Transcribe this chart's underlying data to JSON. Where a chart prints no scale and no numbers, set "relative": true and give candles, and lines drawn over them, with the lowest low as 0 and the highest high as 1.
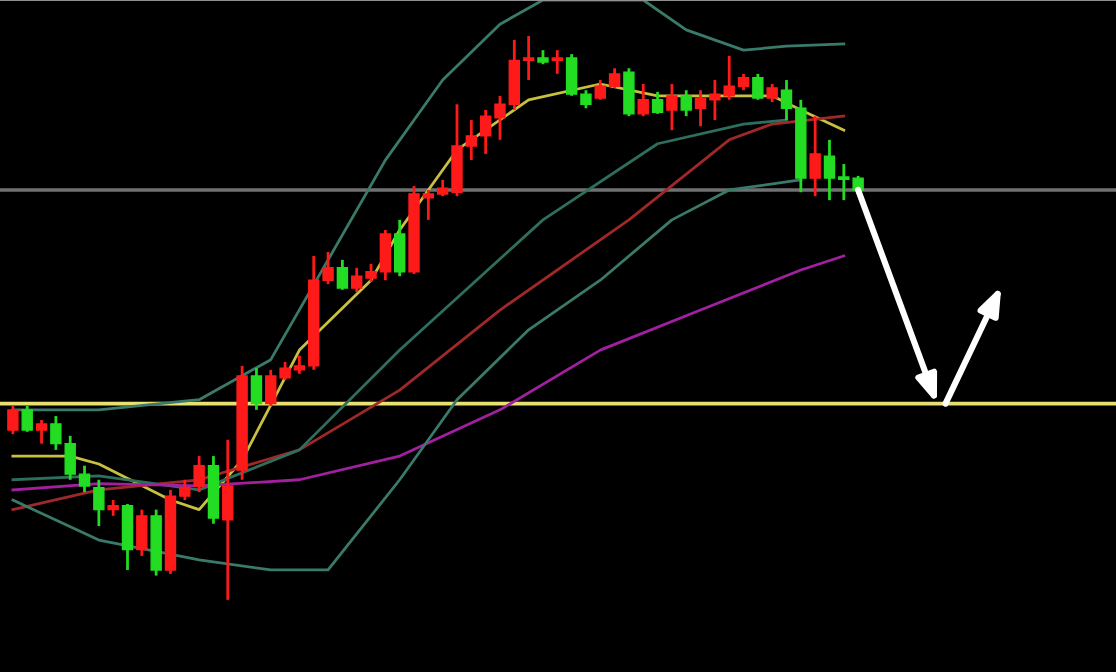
{
  "chart_data": {
    "type": "candlestick",
    "relative": true,
    "categories": [
      null,
      null,
      null,
      null,
      null,
      null,
      null,
      null,
      null,
      null,
      null,
      null,
      null,
      null,
      null,
      null,
      null,
      null,
      null,
      null,
      null,
      null,
      null,
      null,
      null,
      null,
      null,
      null,
      null,
      null,
      null,
      null,
      null,
      null,
      null,
      null,
      null,
      null,
      null,
      null,
      null,
      null,
      null,
      null,
      null,
      null,
      null,
      null,
      null,
      null,
      null,
      null,
      null,
      null,
      null,
      null,
      null,
      null,
      null,
      null
    ],
    "ohlc": [
      [
        0.301,
        0.344,
        0.294,
        0.337
      ],
      [
        0.337,
        0.344,
        0.298,
        0.301
      ],
      [
        0.301,
        0.319,
        0.277,
        0.312
      ],
      [
        0.312,
        0.326,
        0.266,
        0.277
      ],
      [
        0.277,
        0.291,
        0.213,
        0.223
      ],
      [
        0.223,
        0.238,
        0.191,
        0.202
      ],
      [
        0.199,
        0.213,
        0.131,
        0.16
      ],
      [
        0.16,
        0.177,
        0.149,
        0.167
      ],
      [
        0.167,
        0.17,
        0.053,
        0.089
      ],
      [
        0.089,
        0.16,
        0.078,
        0.149
      ],
      [
        0.149,
        0.16,
        0.043,
        0.053
      ],
      [
        0.053,
        0.195,
        0.046,
        0.184
      ],
      [
        0.184,
        0.213,
        0.177,
        0.199
      ],
      [
        0.202,
        0.255,
        0.191,
        0.238
      ],
      [
        0.238,
        0.255,
        0.135,
        0.145
      ],
      [
        0.142,
        0.284,
        0.0,
        0.202
      ],
      [
        0.23,
        0.415,
        0.213,
        0.397
      ],
      [
        0.397,
        0.411,
        0.337,
        0.348
      ],
      [
        0.348,
        0.408,
        0.344,
        0.397
      ],
      [
        0.394,
        0.422,
        0.39,
        0.411
      ],
      [
        0.408,
        0.433,
        0.401,
        0.415
      ],
      [
        0.415,
        0.61,
        0.408,
        0.567
      ],
      [
        0.567,
        0.617,
        0.56,
        0.589
      ],
      [
        0.589,
        0.603,
        0.55,
        0.553
      ],
      [
        0.553,
        0.589,
        0.546,
        0.574
      ],
      [
        0.571,
        0.596,
        0.564,
        0.582
      ],
      [
        0.582,
        0.656,
        0.567,
        0.649
      ],
      [
        0.649,
        0.674,
        0.574,
        0.582
      ],
      [
        0.582,
        0.734,
        0.578,
        0.72
      ],
      [
        0.713,
        0.727,
        0.674,
        0.72
      ],
      [
        0.72,
        0.745,
        0.716,
        0.73
      ],
      [
        0.723,
        0.879,
        0.716,
        0.805
      ],
      [
        0.805,
        0.851,
        0.78,
        0.823
      ],
      [
        0.823,
        0.869,
        0.791,
        0.858
      ],
      [
        0.855,
        0.894,
        0.816,
        0.879
      ],
      [
        0.879,
        0.993,
        0.869,
        0.957
      ],
      [
        0.957,
        1.0,
        0.922,
        0.961
      ],
      [
        0.961,
        0.975,
        0.95,
        0.954
      ],
      [
        0.957,
        0.975,
        0.933,
        0.961
      ],
      [
        0.961,
        0.968,
        0.894,
        0.897
      ],
      [
        0.897,
        0.904,
        0.872,
        0.879
      ],
      [
        0.89,
        0.922,
        0.887,
        0.911
      ],
      [
        0.911,
        0.943,
        0.908,
        0.933
      ],
      [
        0.936,
        0.943,
        0.858,
        0.862
      ],
      [
        0.862,
        0.915,
        0.858,
        0.887
      ],
      [
        0.887,
        0.901,
        0.862,
        0.865
      ],
      [
        0.869,
        0.915,
        0.833,
        0.894
      ],
      [
        0.894,
        0.904,
        0.858,
        0.869
      ],
      [
        0.872,
        0.904,
        0.84,
        0.89
      ],
      [
        0.887,
        0.922,
        0.851,
        0.897
      ],
      [
        0.894,
        0.965,
        0.887,
        0.911
      ],
      [
        0.911,
        0.933,
        0.904,
        0.926
      ],
      [
        0.926,
        0.933,
        0.887,
        0.89
      ],
      [
        0.89,
        0.915,
        0.883,
        0.908
      ],
      [
        0.904,
        0.922,
        0.851,
        0.872
      ],
      [
        0.872,
        0.887,
        0.723,
        0.748
      ],
      [
        0.748,
        0.858,
        0.716,
        0.791
      ],
      [
        0.787,
        0.816,
        0.709,
        0.748
      ],
      [
        0.748,
        0.773,
        0.709,
        0.746
      ],
      [
        0.748,
        0.752,
        0.727,
        0.727
      ]
    ],
    "series": [
      {
        "type": "line",
        "color": "#c8c040",
        "values": [
          0.255,
          null,
          null,
          null,
          0.255,
          null,
          0.241,
          null,
          null,
          null,
          null,
          0.177,
          null,
          0.16,
          null,
          null,
          0.248,
          null,
          null,
          null,
          0.443,
          null,
          null,
          null,
          null,
          0.567,
          null,
          0.656,
          null,
          null,
          null,
          0.798,
          null,
          null,
          null,
          null,
          0.887,
          null,
          null,
          null,
          null,
          0.915,
          null,
          null,
          null,
          0.894,
          null,
          null,
          null,
          null,
          0.894,
          null,
          null,
          0.894,
          null,
          0.869,
          null,
          null,
          0.833,
          null
        ]
      },
      {
        "type": "line",
        "color": "#a02828",
        "values": [
          0.16,
          null,
          null,
          null,
          null,
          null,
          0.195,
          null,
          null,
          null,
          null,
          null,
          null,
          0.213,
          null,
          null,
          null,
          null,
          null,
          null,
          0.266,
          null,
          null,
          null,
          null,
          null,
          null,
          0.372,
          null,
          null,
          null,
          null,
          null,
          null,
          0.514,
          null,
          null,
          null,
          null,
          null,
          null,
          null,
          null,
          0.674,
          null,
          null,
          null,
          null,
          null,
          null,
          0.816,
          null,
          null,
          0.844,
          null,
          null,
          null,
          null,
          0.858,
          null
        ]
      },
      {
        "type": "line",
        "color": "#2e6e5e",
        "values": [
          0.213,
          null,
          null,
          null,
          null,
          null,
          0.22,
          null,
          null,
          null,
          null,
          null,
          null,
          0.195,
          null,
          null,
          null,
          null,
          null,
          null,
          0.266,
          null,
          null,
          null,
          null,
          null,
          null,
          0.443,
          null,
          null,
          null,
          null,
          null,
          null,
          null,
          null,
          null,
          0.674,
          null,
          null,
          null,
          null,
          null,
          null,
          null,
          0.809,
          null,
          null,
          null,
          null,
          null,
          0.844,
          null,
          null,
          0.851,
          null,
          null,
          null,
          null,
          null
        ]
      },
      {
        "type": "line",
        "color": "#a020a0",
        "values": [
          0.195,
          null,
          null,
          null,
          null,
          null,
          0.206,
          null,
          null,
          null,
          null,
          null,
          null,
          0.202,
          null,
          null,
          null,
          null,
          null,
          null,
          0.213,
          null,
          null,
          null,
          null,
          null,
          null,
          0.255,
          null,
          null,
          null,
          null,
          null,
          null,
          0.337,
          null,
          null,
          null,
          null,
          null,
          null,
          0.443,
          null,
          null,
          null,
          null,
          null,
          null,
          0.514,
          null,
          null,
          null,
          null,
          null,
          null,
          0.585,
          null,
          null,
          0.61,
          null
        ]
      },
      {
        "type": "line",
        "color": "#3a7a6a",
        "values": [
          0.337,
          null,
          null,
          null,
          null,
          null,
          0.337,
          null,
          null,
          null,
          null,
          null,
          null,
          0.355,
          null,
          null,
          null,
          null,
          0.426,
          null,
          null,
          null,
          0.603,
          null,
          null,
          null,
          0.78,
          null,
          null,
          null,
          0.922,
          null,
          null,
          null,
          1.021,
          null,
          null,
          1.064,
          null,
          null,
          null,
          null,
          null,
          null,
          1.064,
          null,
          null,
          1.011,
          null,
          null,
          null,
          0.975,
          null,
          null,
          0.982,
          null,
          null,
          null,
          0.986,
          null
        ]
      },
      {
        "type": "line",
        "color": "#3a7a6a",
        "values": [
          0.177,
          null,
          null,
          null,
          null,
          null,
          0.106,
          null,
          null,
          null,
          null,
          null,
          null,
          0.071,
          null,
          null,
          null,
          null,
          0.053,
          null,
          null,
          null,
          0.053,
          null,
          null,
          null,
          null,
          0.213,
          null,
          null,
          null,
          0.355,
          null,
          null,
          null,
          null,
          0.479,
          null,
          null,
          null,
          null,
          0.567,
          null,
          null,
          null,
          null,
          0.674,
          null,
          null,
          null,
          0.727,
          null,
          null,
          null,
          null,
          0.745,
          null,
          null,
          null,
          null
        ]
      }
    ],
    "ref_lines": [
      {
        "axis": "y",
        "value": 0.348,
        "color": "#e8e070"
      },
      {
        "axis": "y",
        "value": 0.727,
        "color": "#707070"
      }
    ]
  }
}
